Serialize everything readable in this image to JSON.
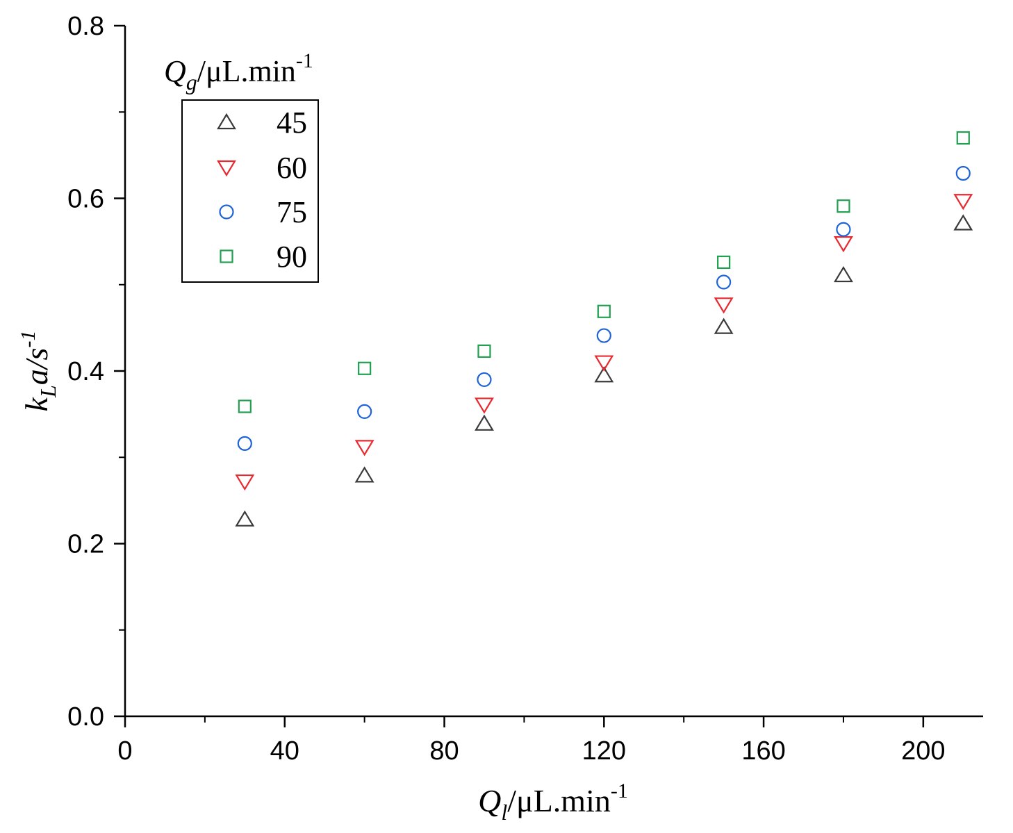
{
  "chart_data": {
    "type": "scatter",
    "x_axis": {
      "label_symbol": "Q",
      "label_subscript": "l",
      "label_unit": "/μL.min",
      "label_superscript": "-1",
      "range": [
        0,
        215
      ],
      "ticks": [
        0,
        40,
        80,
        120,
        160,
        200
      ],
      "tick_labels": [
        "0",
        "40",
        "80",
        "120",
        "160",
        "200"
      ],
      "minor_ticks": [
        20,
        60,
        100,
        140,
        180
      ]
    },
    "y_axis": {
      "label_symbol": "k",
      "label_subscript": "L",
      "label_rest": "a/s",
      "label_superscript": "-1",
      "range": [
        0,
        0.8
      ],
      "ticks": [
        0,
        0.2,
        0.4,
        0.6,
        0.8
      ],
      "tick_labels": [
        "0.0",
        "0.2",
        "0.4",
        "0.6",
        "0.8"
      ],
      "minor_ticks": [
        0.1,
        0.3,
        0.5,
        0.7
      ]
    },
    "legend": {
      "title_symbol": "Q",
      "title_subscript": "g",
      "title_unit": "/μL.min",
      "title_superscript": "-1",
      "position": "top-left"
    },
    "x": [
      30,
      60,
      90,
      120,
      150,
      180,
      210
    ],
    "series": [
      {
        "name": "45",
        "marker": "triangle-up",
        "color": "#3a3a3a",
        "values": [
          0.228,
          0.279,
          0.339,
          0.395,
          0.451,
          0.511,
          0.571
        ]
      },
      {
        "name": "60",
        "marker": "triangle-down",
        "color": "#e8292f",
        "values": [
          0.272,
          0.312,
          0.361,
          0.41,
          0.477,
          0.548,
          0.597
        ]
      },
      {
        "name": "75",
        "marker": "circle",
        "color": "#1f63d6",
        "values": [
          0.316,
          0.353,
          0.39,
          0.441,
          0.503,
          0.564,
          0.629
        ]
      },
      {
        "name": "90",
        "marker": "square",
        "color": "#20a050",
        "values": [
          0.359,
          0.403,
          0.423,
          0.469,
          0.526,
          0.591,
          0.67
        ]
      }
    ]
  }
}
